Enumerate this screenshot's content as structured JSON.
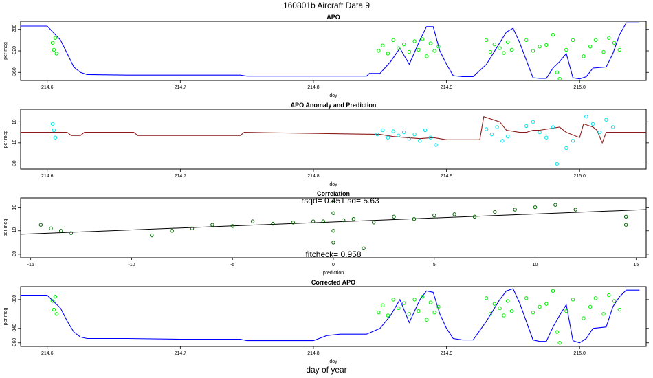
{
  "figure": {
    "title": "160801b   Aircraft Data 9",
    "bottom_label": "day of year"
  },
  "chart_data": [
    {
      "type": "line",
      "title": "APO",
      "xlabel": "doy",
      "ylabel": "per meg",
      "xlim": [
        214.58,
        215.05
      ],
      "ylim": [
        -375,
        -265
      ],
      "xticks": [
        "214.6",
        "214.7",
        "214.8",
        "214.9",
        "215.0"
      ],
      "yticks": [
        "-280",
        "-320",
        "-360"
      ],
      "series": [
        {
          "style": "line",
          "color": "#0000ff",
          "x": [
            214.58,
            214.6,
            214.61,
            214.615,
            214.62,
            214.625,
            214.63,
            214.66,
            214.7,
            214.745,
            214.75,
            214.8,
            214.83,
            214.84,
            214.842,
            214.85,
            214.858,
            214.865,
            214.872,
            214.88,
            214.885,
            214.89,
            214.895,
            214.9,
            214.905,
            214.912,
            214.92,
            214.93,
            214.94,
            214.945,
            214.95,
            214.955,
            214.965,
            214.97,
            214.975,
            214.98,
            214.985,
            214.99,
            214.995,
            215.0,
            215.005,
            215.01,
            215.02,
            215.025,
            215.03,
            215.035,
            215.045
          ],
          "y": [
            -274,
            -274,
            -300,
            -325,
            -350,
            -360,
            -364,
            -365,
            -365,
            -365,
            -367,
            -367,
            -367,
            -367,
            -362,
            -362,
            -340,
            -315,
            -345,
            -300,
            -275,
            -275,
            -320,
            -345,
            -366,
            -368,
            -368,
            -345,
            -305,
            -285,
            -278,
            -305,
            -370,
            -371,
            -371,
            -352,
            -340,
            -325,
            -370,
            -372,
            -368,
            -352,
            -350,
            -325,
            -290,
            -268,
            -268
          ]
        },
        {
          "style": "points",
          "color": "#00ee00",
          "x": [
            214.604,
            214.605,
            214.606,
            214.607,
            214.849,
            214.852,
            214.856,
            214.86,
            214.864,
            214.868,
            214.872,
            214.876,
            214.879,
            214.882,
            214.885,
            214.888,
            214.891,
            214.894,
            214.93,
            214.933,
            214.936,
            214.94,
            214.943,
            214.946,
            214.949,
            214.96,
            214.965,
            214.97,
            214.975,
            214.98,
            214.983,
            214.985,
            214.99,
            214.995,
            215.003,
            215.008,
            215.012,
            215.018,
            215.022,
            215.026,
            215.03
          ],
          "y": [
            -305,
            -318,
            -296,
            -325,
            -320,
            -310,
            -325,
            -300,
            -315,
            -308,
            -322,
            -302,
            -318,
            -298,
            -330,
            -306,
            -320,
            -312,
            -300,
            -322,
            -308,
            -315,
            -324,
            -304,
            -318,
            -300,
            -320,
            -312,
            -309,
            -290,
            -360,
            -372,
            -318,
            -300,
            -330,
            -312,
            -300,
            -322,
            -296,
            -305,
            -318
          ]
        }
      ]
    },
    {
      "type": "line",
      "title": "APO Anomaly and Prediction",
      "xlabel": "doy",
      "ylabel": "per meg",
      "xlim": [
        214.58,
        215.05
      ],
      "ylim": [
        -35,
        22
      ],
      "xticks": [
        "214.6",
        "214.7",
        "214.8",
        "214.9",
        "215.0"
      ],
      "yticks": [
        "10",
        "-10",
        "-30"
      ],
      "series": [
        {
          "style": "line",
          "color": "#8b1a1a",
          "x": [
            214.58,
            214.615,
            214.618,
            214.625,
            214.628,
            214.665,
            214.668,
            214.745,
            214.748,
            214.85,
            214.86,
            214.87,
            214.88,
            214.89,
            214.9,
            214.905,
            214.925,
            214.928,
            214.94,
            214.945,
            214.955,
            214.96,
            214.965,
            214.97,
            214.975,
            214.985,
            214.99,
            215.0,
            215.003,
            215.01,
            215.013,
            215.017,
            215.02,
            215.05
          ],
          "y": [
            0,
            0,
            -3,
            -3,
            0,
            0,
            -3,
            -3,
            0,
            -2,
            -4,
            -5,
            -6,
            -5,
            -7,
            -7,
            -7,
            15,
            10,
            2,
            0,
            0,
            2,
            2,
            3,
            5,
            0,
            -5,
            8,
            5,
            2,
            -10,
            0,
            0
          ]
        },
        {
          "style": "points",
          "color": "#00e5ee",
          "x": [
            214.604,
            214.605,
            214.606,
            214.848,
            214.852,
            214.856,
            214.86,
            214.864,
            214.868,
            214.872,
            214.876,
            214.88,
            214.884,
            214.888,
            214.892,
            214.93,
            214.934,
            214.938,
            214.942,
            214.946,
            214.96,
            214.965,
            214.97,
            214.975,
            214.98,
            214.983,
            214.99,
            214.995,
            215.005,
            215.01,
            215.015,
            215.02,
            215.025
          ],
          "y": [
            8,
            2,
            -5,
            -2,
            2,
            -5,
            1,
            -3,
            0,
            -6,
            -2,
            -8,
            2,
            -5,
            -12,
            3,
            -2,
            5,
            -8,
            -4,
            6,
            10,
            0,
            -5,
            5,
            -30,
            -15,
            -8,
            15,
            8,
            0,
            12,
            5
          ]
        }
      ]
    },
    {
      "type": "scatter",
      "title": "Correlation",
      "xlabel": "prediction",
      "ylabel": "per meg",
      "xlim": [
        -15.5,
        15.5
      ],
      "ylim": [
        -33,
        18
      ],
      "xticks": [
        "-15",
        "-10",
        "-5",
        "0",
        "5",
        "10",
        "15"
      ],
      "yticks": [
        "10",
        "-10",
        "-30"
      ],
      "annotations": {
        "stats": "rsqd= 0.451 sd= 5.63",
        "fitcheck": "fitcheck= 0.958"
      },
      "fit_line": {
        "x": [
          -15.5,
          15.5
        ],
        "y": [
          -13,
          8
        ]
      },
      "series": [
        {
          "style": "points",
          "color": "#006400",
          "x": [
            -14.5,
            -14,
            -13.5,
            -13,
            -9,
            -8,
            -7,
            -6,
            -5,
            -4,
            -3,
            -2,
            -1,
            -0.5,
            0,
            0,
            0,
            0,
            0.5,
            1,
            1.5,
            2,
            3,
            4,
            5,
            6,
            7,
            8,
            9,
            10,
            11,
            12,
            14.5,
            14.5
          ],
          "y": [
            -5,
            -8,
            -10,
            -12,
            -14,
            -10,
            -8,
            -5,
            -6,
            -2,
            -4,
            -3,
            -2,
            -2,
            15,
            5,
            -10,
            -20,
            -1,
            0,
            -25,
            -3,
            2,
            0,
            3,
            4,
            2,
            6,
            8,
            10,
            12,
            8,
            2,
            -5
          ]
        }
      ]
    },
    {
      "type": "line",
      "title": "Corrected APO",
      "xlabel": "doy",
      "ylabel": "per meg",
      "xlim": [
        214.58,
        215.05
      ],
      "ylim": [
        -365,
        -282
      ],
      "xticks": [
        "214.6",
        "214.7",
        "214.8",
        "214.9",
        "215.0"
      ],
      "yticks": [
        "-300",
        "-340",
        "-360"
      ],
      "series": [
        {
          "style": "line",
          "color": "#0000ff",
          "x": [
            214.58,
            214.6,
            214.61,
            214.615,
            214.62,
            214.625,
            214.63,
            214.66,
            214.7,
            214.745,
            214.75,
            214.8,
            214.81,
            214.82,
            214.84,
            214.85,
            214.858,
            214.865,
            214.872,
            214.88,
            214.885,
            214.89,
            214.895,
            214.9,
            214.905,
            214.912,
            214.92,
            214.93,
            214.94,
            214.945,
            214.95,
            214.955,
            214.965,
            214.97,
            214.975,
            214.98,
            214.985,
            214.99,
            214.995,
            215.0,
            215.005,
            215.01,
            215.02,
            215.025,
            215.03,
            215.035,
            215.045
          ],
          "y": [
            -294,
            -294,
            -312,
            -330,
            -345,
            -352,
            -354,
            -354,
            -355,
            -355,
            -357,
            -357,
            -350,
            -348,
            -348,
            -340,
            -322,
            -300,
            -332,
            -300,
            -288,
            -290,
            -320,
            -340,
            -354,
            -356,
            -356,
            -330,
            -300,
            -288,
            -285,
            -305,
            -356,
            -358,
            -358,
            -338,
            -322,
            -307,
            -357,
            -360,
            -354,
            -340,
            -338,
            -310,
            -296,
            -287,
            -287
          ]
        },
        {
          "style": "points",
          "color": "#00ee00",
          "x": [
            214.604,
            214.605,
            214.606,
            214.607,
            214.849,
            214.852,
            214.856,
            214.86,
            214.864,
            214.868,
            214.872,
            214.876,
            214.879,
            214.882,
            214.885,
            214.888,
            214.891,
            214.894,
            214.93,
            214.933,
            214.936,
            214.94,
            214.943,
            214.946,
            214.949,
            214.96,
            214.965,
            214.97,
            214.975,
            214.98,
            214.983,
            214.985,
            214.99,
            214.995,
            215.003,
            215.008,
            215.012,
            215.018,
            215.022,
            215.026,
            215.03
          ],
          "y": [
            -302,
            -314,
            -296,
            -320,
            -318,
            -308,
            -322,
            -300,
            -312,
            -305,
            -320,
            -300,
            -316,
            -296,
            -328,
            -304,
            -318,
            -310,
            -298,
            -320,
            -306,
            -312,
            -322,
            -302,
            -316,
            -298,
            -318,
            -310,
            -306,
            -288,
            -345,
            -360,
            -316,
            -300,
            -326,
            -310,
            -298,
            -320,
            -294,
            -302,
            -314
          ]
        }
      ]
    }
  ]
}
